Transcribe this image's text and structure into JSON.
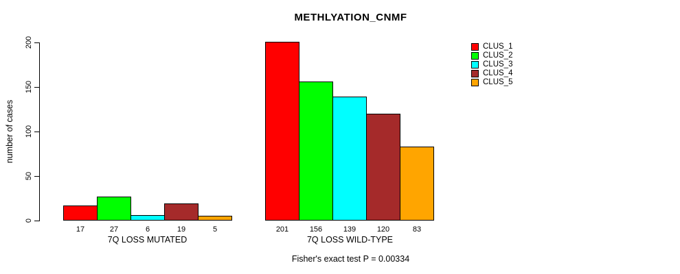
{
  "chart_data": {
    "type": "bar",
    "title": "METHLYATION_CNMF",
    "ylabel": "number of cases",
    "xlabel": "",
    "groups": [
      "7Q LOSS MUTATED",
      "7Q LOSS WILD-TYPE"
    ],
    "series": [
      {
        "name": "CLUS_1",
        "color": "#FF0000",
        "values": [
          17,
          201
        ]
      },
      {
        "name": "CLUS_2",
        "color": "#00FF00",
        "values": [
          27,
          156
        ]
      },
      {
        "name": "CLUS_3",
        "color": "#00FFFF",
        "values": [
          6,
          139
        ]
      },
      {
        "name": "CLUS_4",
        "color": "#A52A2A",
        "values": [
          19,
          120
        ]
      },
      {
        "name": "CLUS_5",
        "color": "#FFA500",
        "values": [
          5,
          83
        ]
      }
    ],
    "yticks": [
      0,
      50,
      100,
      150,
      200
    ],
    "ylim": [
      0,
      200
    ],
    "bar_value_labels": true,
    "grid": false,
    "legend_position": "right",
    "annotation": "Fisher's exact test P = 0.00334"
  }
}
